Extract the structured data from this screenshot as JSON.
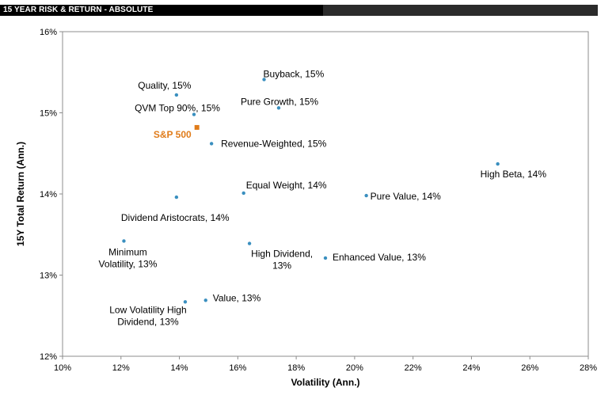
{
  "header": {
    "title": "15 YEAR RISK & RETURN - ABSOLUTE"
  },
  "colors": {
    "point": "#3a8fbf",
    "benchmark": "#e07c1a"
  },
  "chart_data": {
    "type": "scatter",
    "title": "",
    "xlabel": "Volatility (Ann.)",
    "ylabel": "15Y Total Return (Ann.)",
    "xlim": [
      10,
      28
    ],
    "ylim": [
      12,
      16
    ],
    "x_ticks": [
      "10%",
      "12%",
      "14%",
      "16%",
      "18%",
      "20%",
      "22%",
      "24%",
      "26%",
      "28%"
    ],
    "y_ticks": [
      "12%",
      "13%",
      "14%",
      "15%",
      "16%"
    ],
    "grid": false,
    "points": [
      {
        "label": [
          "Quality, 15%"
        ],
        "x": 13.9,
        "y": 15.22
      },
      {
        "label": [
          "Buyback, 15%"
        ],
        "x": 16.9,
        "y": 15.41
      },
      {
        "label": [
          "QVM Top 90%, 15%"
        ],
        "x": 14.5,
        "y": 14.98
      },
      {
        "label": [
          "Pure Growth, 15%"
        ],
        "x": 17.4,
        "y": 15.06
      },
      {
        "label": [
          "Revenue-Weighted, 15%"
        ],
        "x": 15.1,
        "y": 14.62
      },
      {
        "label": [
          "High Beta, 14%"
        ],
        "x": 24.9,
        "y": 14.37
      },
      {
        "label": [
          "Equal Weight, 14%"
        ],
        "x": 16.2,
        "y": 14.01
      },
      {
        "label": [
          "Pure Value, 14%"
        ],
        "x": 20.4,
        "y": 13.98
      },
      {
        "label": [
          "Dividend Aristocrats, 14%"
        ],
        "x": 13.9,
        "y": 13.96
      },
      {
        "label": [
          "Minimum",
          "Volatility, 13%"
        ],
        "x": 12.1,
        "y": 13.42
      },
      {
        "label": [
          "High Dividend,",
          "13%"
        ],
        "x": 16.4,
        "y": 13.39
      },
      {
        "label": [
          "Enhanced Value, 13%"
        ],
        "x": 19.0,
        "y": 13.21
      },
      {
        "label": [
          "Value, 13%"
        ],
        "x": 14.9,
        "y": 12.69
      },
      {
        "label": [
          "Low Volatility High",
          "Dividend, 13%"
        ],
        "x": 14.2,
        "y": 12.67
      }
    ],
    "benchmark": {
      "label": "S&P 500",
      "x": 14.6,
      "y": 14.82
    }
  }
}
